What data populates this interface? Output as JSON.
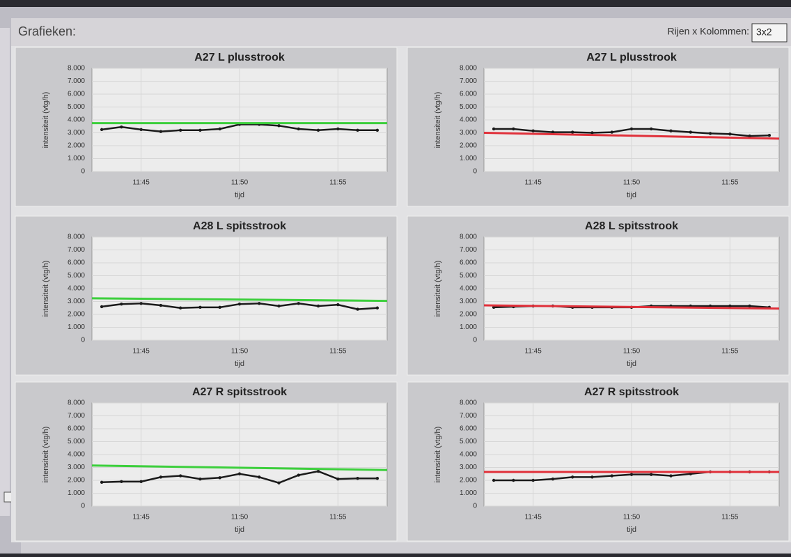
{
  "header": {
    "title": "Grafieken:",
    "layout_label": "Rijen x Kolommen:",
    "layout_value": "3x2"
  },
  "chart_data": [
    {
      "type": "line",
      "title": "A27 L plusstrook",
      "x_label": "tijd",
      "y_label": "intensiteit (vtg/h)",
      "x": [
        43,
        44,
        45,
        46,
        47,
        48,
        49,
        50,
        51,
        52,
        53,
        54,
        55,
        56,
        57
      ],
      "xlim": [
        42.5,
        57.5
      ],
      "xticks": [
        {
          "value": 45,
          "label": "11:45"
        },
        {
          "value": 50,
          "label": "11:50"
        },
        {
          "value": 55,
          "label": "11:55"
        }
      ],
      "ylim": [
        0,
        8000
      ],
      "yticks": [
        0,
        {
          "value": 1000,
          "label": "1.000"
        },
        {
          "value": 2000,
          "label": "2.000"
        },
        {
          "value": 3000,
          "label": "3.000"
        },
        {
          "value": 4000,
          "label": "4.000"
        },
        {
          "value": 5000,
          "label": "5.000"
        },
        {
          "value": 6000,
          "label": "6.000"
        },
        {
          "value": 7000,
          "label": "7.000"
        },
        {
          "value": 8000,
          "label": "8.000"
        }
      ],
      "grid": true,
      "series": [
        {
          "color": "#1a1a1a",
          "values": [
            3250,
            3450,
            3250,
            3100,
            3200,
            3200,
            3300,
            3650,
            3650,
            3550,
            3300,
            3200,
            3300,
            3200,
            3200
          ]
        },
        {
          "color": "#3ccf3c",
          "x": [
            42.5,
            57.5
          ],
          "values": [
            3750,
            3750
          ]
        }
      ]
    },
    {
      "type": "line",
      "title": "A27 L plusstrook",
      "x_label": "tijd",
      "y_label": "intensiteit (vtg/h)",
      "x": [
        43,
        44,
        45,
        46,
        47,
        48,
        49,
        50,
        51,
        52,
        53,
        54,
        55,
        56,
        57
      ],
      "xlim": [
        42.5,
        57.5
      ],
      "xticks": [
        {
          "value": 45,
          "label": "11:45"
        },
        {
          "value": 50,
          "label": "11:50"
        },
        {
          "value": 55,
          "label": "11:55"
        }
      ],
      "ylim": [
        0,
        8000
      ],
      "yticks": [
        0,
        {
          "value": 1000,
          "label": "1.000"
        },
        {
          "value": 2000,
          "label": "2.000"
        },
        {
          "value": 3000,
          "label": "3.000"
        },
        {
          "value": 4000,
          "label": "4.000"
        },
        {
          "value": 5000,
          "label": "5.000"
        },
        {
          "value": 6000,
          "label": "6.000"
        },
        {
          "value": 7000,
          "label": "7.000"
        },
        {
          "value": 8000,
          "label": "8.000"
        }
      ],
      "grid": true,
      "series": [
        {
          "color": "#1a1a1a",
          "values": [
            3300,
            3300,
            3150,
            3050,
            3050,
            3000,
            3050,
            3300,
            3300,
            3150,
            3050,
            2950,
            2900,
            2750,
            2800
          ]
        },
        {
          "color": "#e0303a",
          "x": [
            42.5,
            57.5
          ],
          "values": [
            3000,
            2550
          ]
        }
      ]
    },
    {
      "type": "line",
      "title": "A28 L spitsstrook",
      "x_label": "tijd",
      "y_label": "intensiteit (vtg/h)",
      "x": [
        43,
        44,
        45,
        46,
        47,
        48,
        49,
        50,
        51,
        52,
        53,
        54,
        55,
        56,
        57
      ],
      "xlim": [
        42.5,
        57.5
      ],
      "xticks": [
        {
          "value": 45,
          "label": "11:45"
        },
        {
          "value": 50,
          "label": "11:50"
        },
        {
          "value": 55,
          "label": "11:55"
        }
      ],
      "ylim": [
        0,
        8000
      ],
      "yticks": [
        0,
        {
          "value": 1000,
          "label": "1.000"
        },
        {
          "value": 2000,
          "label": "2.000"
        },
        {
          "value": 3000,
          "label": "3.000"
        },
        {
          "value": 4000,
          "label": "4.000"
        },
        {
          "value": 5000,
          "label": "5.000"
        },
        {
          "value": 6000,
          "label": "6.000"
        },
        {
          "value": 7000,
          "label": "7.000"
        },
        {
          "value": 8000,
          "label": "8.000"
        }
      ],
      "grid": true,
      "series": [
        {
          "color": "#1a1a1a",
          "values": [
            2600,
            2800,
            2850,
            2700,
            2500,
            2550,
            2550,
            2800,
            2850,
            2650,
            2850,
            2650,
            2750,
            2400,
            2500
          ]
        },
        {
          "color": "#3ccf3c",
          "x": [
            42.5,
            57.5
          ],
          "values": [
            3250,
            3050
          ]
        }
      ]
    },
    {
      "type": "line",
      "title": "A28 L spitsstrook",
      "x_label": "tijd",
      "y_label": "intensiteit (vtg/h)",
      "x": [
        43,
        44,
        45,
        46,
        47,
        48,
        49,
        50,
        51,
        52,
        53,
        54,
        55,
        56,
        57
      ],
      "xlim": [
        42.5,
        57.5
      ],
      "xticks": [
        {
          "value": 45,
          "label": "11:45"
        },
        {
          "value": 50,
          "label": "11:50"
        },
        {
          "value": 55,
          "label": "11:55"
        }
      ],
      "ylim": [
        0,
        8000
      ],
      "yticks": [
        0,
        {
          "value": 1000,
          "label": "1.000"
        },
        {
          "value": 2000,
          "label": "2.000"
        },
        {
          "value": 3000,
          "label": "3.000"
        },
        {
          "value": 4000,
          "label": "4.000"
        },
        {
          "value": 5000,
          "label": "5.000"
        },
        {
          "value": 6000,
          "label": "6.000"
        },
        {
          "value": 7000,
          "label": "7.000"
        },
        {
          "value": 8000,
          "label": "8.000"
        }
      ],
      "grid": true,
      "series": [
        {
          "color": "#1a1a1a",
          "values": [
            2550,
            2600,
            2650,
            2650,
            2550,
            2550,
            2550,
            2550,
            2650,
            2650,
            2650,
            2650,
            2650,
            2650,
            2550
          ]
        },
        {
          "color": "#e0303a",
          "x": [
            42.5,
            57.5
          ],
          "values": [
            2700,
            2450
          ]
        }
      ]
    },
    {
      "type": "line",
      "title": "A27 R spitsstrook",
      "x_label": "tijd",
      "y_label": "intensiteit (vtg/h)",
      "x": [
        43,
        44,
        45,
        46,
        47,
        48,
        49,
        50,
        51,
        52,
        53,
        54,
        55,
        56,
        57
      ],
      "xlim": [
        42.5,
        57.5
      ],
      "xticks": [
        {
          "value": 45,
          "label": "11:45"
        },
        {
          "value": 50,
          "label": "11:50"
        },
        {
          "value": 55,
          "label": "11:55"
        }
      ],
      "ylim": [
        0,
        8000
      ],
      "yticks": [
        0,
        {
          "value": 1000,
          "label": "1.000"
        },
        {
          "value": 2000,
          "label": "2.000"
        },
        {
          "value": 3000,
          "label": "3.000"
        },
        {
          "value": 4000,
          "label": "4.000"
        },
        {
          "value": 5000,
          "label": "5.000"
        },
        {
          "value": 6000,
          "label": "6.000"
        },
        {
          "value": 7000,
          "label": "7.000"
        },
        {
          "value": 8000,
          "label": "8.000"
        }
      ],
      "grid": true,
      "series": [
        {
          "color": "#1a1a1a",
          "values": [
            1850,
            1900,
            1900,
            2250,
            2350,
            2100,
            2200,
            2500,
            2250,
            1800,
            2400,
            2700,
            2100,
            2150,
            2150
          ]
        },
        {
          "color": "#3ccf3c",
          "x": [
            42.5,
            57.5
          ],
          "values": [
            3150,
            2800
          ]
        }
      ]
    },
    {
      "type": "line",
      "title": "A27 R spitsstrook",
      "x_label": "tijd",
      "y_label": "intensiteit (vtg/h)",
      "x": [
        43,
        44,
        45,
        46,
        47,
        48,
        49,
        50,
        51,
        52,
        53,
        54,
        55,
        56,
        57
      ],
      "xlim": [
        42.5,
        57.5
      ],
      "xticks": [
        {
          "value": 45,
          "label": "11:45"
        },
        {
          "value": 50,
          "label": "11:50"
        },
        {
          "value": 55,
          "label": "11:55"
        }
      ],
      "ylim": [
        0,
        8000
      ],
      "yticks": [
        0,
        {
          "value": 1000,
          "label": "1.000"
        },
        {
          "value": 2000,
          "label": "2.000"
        },
        {
          "value": 3000,
          "label": "3.000"
        },
        {
          "value": 4000,
          "label": "4.000"
        },
        {
          "value": 5000,
          "label": "5.000"
        },
        {
          "value": 6000,
          "label": "6.000"
        },
        {
          "value": 7000,
          "label": "7.000"
        },
        {
          "value": 8000,
          "label": "8.000"
        }
      ],
      "grid": true,
      "series": [
        {
          "color": "#1a1a1a",
          "values": [
            2000,
            2000,
            2000,
            2100,
            2250,
            2250,
            2350,
            2450,
            2450,
            2350,
            2500,
            2650,
            2650,
            2650,
            2650
          ]
        },
        {
          "color": "#e0303a",
          "x": [
            42.5,
            57.5
          ],
          "values": [
            2650,
            2650
          ]
        }
      ]
    }
  ]
}
